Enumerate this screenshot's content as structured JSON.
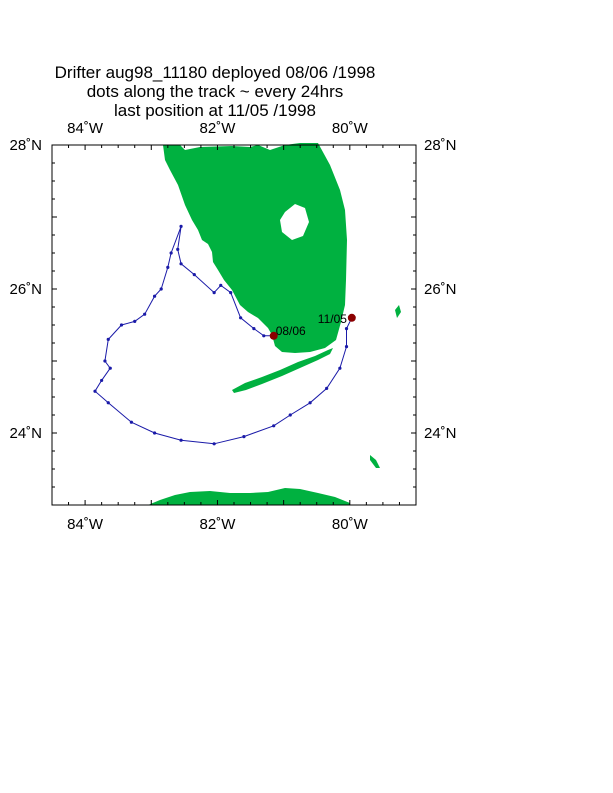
{
  "title": {
    "line1": "Drifter aug98_11180  deployed  08/06 /1998",
    "line2": "dots along the track ~ every 24hrs",
    "line3": "last position at 11/05 /1998"
  },
  "map": {
    "lon_range": [
      -84.5,
      -79.0
    ],
    "lat_range": [
      23.0,
      28.0
    ],
    "lon_ticks": [
      {
        "value": -84,
        "label": "84˚W"
      },
      {
        "value": -82,
        "label": "82˚W"
      },
      {
        "value": -80,
        "label": "80˚W"
      }
    ],
    "lat_ticks": [
      {
        "value": 28,
        "label": "28˚N"
      },
      {
        "value": 26,
        "label": "26˚N"
      },
      {
        "value": 24,
        "label": "24˚N"
      }
    ],
    "colors": {
      "land": "#00b140",
      "track": "#1a1aa8",
      "marker": "#8b0000",
      "frame": "#000000"
    }
  },
  "deployment": {
    "label": "08/06",
    "lon": -81.15,
    "lat": 25.35
  },
  "last_position": {
    "label": "11/05",
    "lon": -79.97,
    "lat": 25.6
  },
  "track": [
    [
      -81.15,
      25.35
    ],
    [
      -81.3,
      25.35
    ],
    [
      -81.45,
      25.45
    ],
    [
      -81.65,
      25.6
    ],
    [
      -81.8,
      25.95
    ],
    [
      -81.95,
      26.05
    ],
    [
      -82.05,
      25.95
    ],
    [
      -82.35,
      26.2
    ],
    [
      -82.55,
      26.35
    ],
    [
      -82.6,
      26.55
    ],
    [
      -82.55,
      26.87
    ],
    [
      -82.7,
      26.5
    ],
    [
      -82.75,
      26.3
    ],
    [
      -82.85,
      26.0
    ],
    [
      -82.95,
      25.9
    ],
    [
      -83.1,
      25.65
    ],
    [
      -83.25,
      25.55
    ],
    [
      -83.45,
      25.5
    ],
    [
      -83.65,
      25.3
    ],
    [
      -83.7,
      25.0
    ],
    [
      -83.62,
      24.9
    ],
    [
      -83.75,
      24.73
    ],
    [
      -83.85,
      24.58
    ],
    [
      -83.65,
      24.42
    ],
    [
      -83.3,
      24.15
    ],
    [
      -82.95,
      24.0
    ],
    [
      -82.55,
      23.9
    ],
    [
      -82.05,
      23.85
    ],
    [
      -81.6,
      23.95
    ],
    [
      -81.15,
      24.1
    ],
    [
      -80.9,
      24.25
    ],
    [
      -80.6,
      24.42
    ],
    [
      -80.35,
      24.62
    ],
    [
      -80.15,
      24.9
    ],
    [
      -80.05,
      25.2
    ],
    [
      -80.05,
      25.45
    ],
    [
      -79.97,
      25.6
    ]
  ]
}
